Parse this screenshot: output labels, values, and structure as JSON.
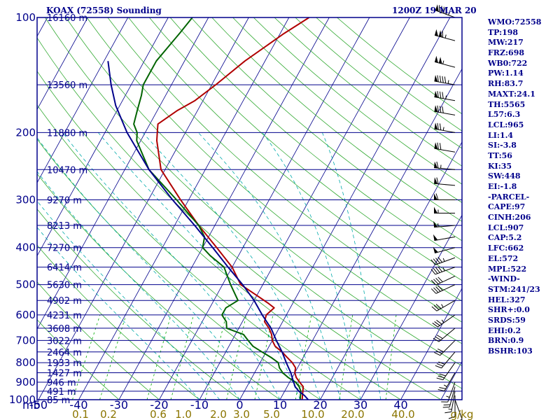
{
  "header": {
    "station": "KOAX (72558) Sounding",
    "time": "1200Z 19 MAR 20"
  },
  "indices": [
    "WMO:72558",
    "TP:198",
    "MW:217",
    "FRZ:698",
    "WB0:722",
    "PW:1.14",
    "RH:83.7",
    "MAXT:24.1",
    "TH:5565",
    "L57:6.3",
    "LCL:965",
    "LI:1.4",
    "SI:-3.8",
    "TT:56",
    "KI:35",
    "SW:448",
    "EI:-1.8",
    "-PARCEL-",
    "CAPE:97",
    "CINH:206",
    "LCL:907",
    "CAP:5.2",
    "LFC:662",
    "EL:572",
    "MPL:522",
    "-WIND-",
    "STM:241/23",
    "HEL:327",
    "SHR+:0.0",
    "SRDS:59",
    "EHI:0.2",
    "BRN:0.9",
    "BSHR:103"
  ],
  "chart_data": {
    "type": "line",
    "chart_kind": "skew-T log-P sounding",
    "title": "KOAX (72558) Sounding",
    "timestamp": "1200Z 19 MAR 20",
    "x_unit_label": "mb",
    "x_ticks": [
      -50,
      -40,
      -30,
      -20,
      -10,
      0,
      10,
      20,
      30,
      40
    ],
    "x_tick_labels": [
      "-50",
      "-40",
      "-30",
      "-20",
      "-10",
      "0",
      "10",
      "20",
      "30",
      "40"
    ],
    "y_ticks": [
      100,
      200,
      300,
      400,
      500,
      600,
      700,
      800,
      900,
      1000
    ],
    "y_tick_labels": [
      "100",
      "200",
      "300",
      "400",
      "500",
      "600",
      "700",
      "800",
      "900",
      "1000"
    ],
    "y_scale": "log",
    "ylim": [
      1000,
      100
    ],
    "height_labels": [
      {
        "p": 100,
        "label": "16160 m"
      },
      {
        "p": 150,
        "label": "13560 m"
      },
      {
        "p": 200,
        "label": "11880 m"
      },
      {
        "p": 250,
        "label": "10470 m"
      },
      {
        "p": 300,
        "label": "9270 m"
      },
      {
        "p": 350,
        "label": "8213 m"
      },
      {
        "p": 400,
        "label": "7270 m"
      },
      {
        "p": 450,
        "label": "6414 m"
      },
      {
        "p": 500,
        "label": "5630 m"
      },
      {
        "p": 550,
        "label": "4902 m"
      },
      {
        "p": 600,
        "label": "4231 m"
      },
      {
        "p": 650,
        "label": "3608 m"
      },
      {
        "p": 700,
        "label": "3022 m"
      },
      {
        "p": 750,
        "label": "2464 m"
      },
      {
        "p": 800,
        "label": "1933 m"
      },
      {
        "p": 850,
        "label": "1427 m"
      },
      {
        "p": 900,
        "label": "946 m"
      },
      {
        "p": 950,
        "label": "491 m"
      },
      {
        "p": 1000,
        "label": "85 m"
      }
    ],
    "mixing_ratio_labels": [
      {
        "w": 0.1,
        "label": "0.1"
      },
      {
        "w": 0.2,
        "label": "0.2"
      },
      {
        "w": 0.6,
        "label": "0.6"
      },
      {
        "w": 1.0,
        "label": "1.0"
      },
      {
        "w": 2.0,
        "label": "2.0"
      },
      {
        "w": 3.0,
        "label": "3.0"
      },
      {
        "w": 5.0,
        "label": "5.0"
      },
      {
        "w": 10.0,
        "label": "10.0"
      },
      {
        "w": 20.0,
        "label": "20.0"
      },
      {
        "w": 40.0,
        "label": "40.0"
      }
    ],
    "mixing_ratio_unit": "g/kg",
    "series": [
      {
        "key": "temperature",
        "color": "#b00000",
        "points": [
          [
            1000,
            15.5
          ],
          [
            975,
            15
          ],
          [
            950,
            14.5
          ],
          [
            925,
            14
          ],
          [
            900,
            12.5
          ],
          [
            875,
            11
          ],
          [
            850,
            10
          ],
          [
            825,
            9.5
          ],
          [
            800,
            8
          ],
          [
            775,
            6
          ],
          [
            750,
            4
          ],
          [
            725,
            1.5
          ],
          [
            700,
            0
          ],
          [
            675,
            -1
          ],
          [
            650,
            -2.5
          ],
          [
            625,
            -4.5
          ],
          [
            600,
            -5
          ],
          [
            575,
            -4
          ],
          [
            560,
            -6
          ],
          [
            540,
            -9
          ],
          [
            500,
            -15.5
          ],
          [
            450,
            -20
          ],
          [
            400,
            -26.5
          ],
          [
            350,
            -34
          ],
          [
            300,
            -42
          ],
          [
            250,
            -51
          ],
          [
            210,
            -56
          ],
          [
            200,
            -57
          ],
          [
            190,
            -58
          ],
          [
            175,
            -55
          ],
          [
            165,
            -52
          ],
          [
            150,
            -49
          ],
          [
            130,
            -45
          ],
          [
            110,
            -39
          ],
          [
            100,
            -35
          ]
        ]
      },
      {
        "key": "dewpoint",
        "color": "#006400",
        "points": [
          [
            1000,
            15
          ],
          [
            975,
            14.5
          ],
          [
            950,
            14
          ],
          [
            925,
            13
          ],
          [
            900,
            11.5
          ],
          [
            875,
            9
          ],
          [
            850,
            7
          ],
          [
            825,
            5.5
          ],
          [
            800,
            4.5
          ],
          [
            775,
            2
          ],
          [
            750,
            -1
          ],
          [
            725,
            -4
          ],
          [
            700,
            -6
          ],
          [
            675,
            -8
          ],
          [
            650,
            -13
          ],
          [
            625,
            -14
          ],
          [
            600,
            -16
          ],
          [
            575,
            -16
          ],
          [
            550,
            -14
          ],
          [
            500,
            -18
          ],
          [
            450,
            -22
          ],
          [
            420,
            -27
          ],
          [
            400,
            -30
          ],
          [
            375,
            -31
          ],
          [
            350,
            -34
          ],
          [
            300,
            -43
          ],
          [
            250,
            -54
          ],
          [
            210,
            -61
          ],
          [
            200,
            -62
          ],
          [
            190,
            -64
          ],
          [
            175,
            -65
          ],
          [
            160,
            -66
          ],
          [
            150,
            -67
          ],
          [
            130,
            -67
          ],
          [
            110,
            -65
          ],
          [
            100,
            -64
          ]
        ]
      },
      {
        "key": "parcel",
        "color": "#00008b",
        "points": [
          [
            1000,
            17
          ],
          [
            975,
            15.5
          ],
          [
            950,
            13.5
          ],
          [
            925,
            12
          ],
          [
            900,
            11
          ],
          [
            850,
            9
          ],
          [
            800,
            6.5
          ],
          [
            750,
            4
          ],
          [
            700,
            1
          ],
          [
            650,
            -2
          ],
          [
            600,
            -6
          ],
          [
            550,
            -10
          ],
          [
            500,
            -15
          ],
          [
            450,
            -21
          ],
          [
            400,
            -27.5
          ],
          [
            350,
            -35
          ],
          [
            300,
            -44
          ],
          [
            250,
            -54
          ],
          [
            200,
            -64.5
          ],
          [
            170,
            -71
          ],
          [
            150,
            -75
          ],
          [
            130,
            -79
          ]
        ]
      }
    ],
    "wind_barbs": [
      {
        "p": 100,
        "dir": 290,
        "spd": 95
      },
      {
        "p": 115,
        "dir": 285,
        "spd": 115
      },
      {
        "p": 135,
        "dir": 285,
        "spd": 105
      },
      {
        "p": 150,
        "dir": 280,
        "spd": 95
      },
      {
        "p": 165,
        "dir": 280,
        "spd": 85
      },
      {
        "p": 180,
        "dir": 280,
        "spd": 80
      },
      {
        "p": 200,
        "dir": 280,
        "spd": 75
      },
      {
        "p": 225,
        "dir": 280,
        "spd": 70
      },
      {
        "p": 250,
        "dir": 275,
        "spd": 65
      },
      {
        "p": 275,
        "dir": 275,
        "spd": 60
      },
      {
        "p": 300,
        "dir": 270,
        "spd": 60
      },
      {
        "p": 325,
        "dir": 270,
        "spd": 55
      },
      {
        "p": 350,
        "dir": 265,
        "spd": 55
      },
      {
        "p": 375,
        "dir": 260,
        "spd": 50
      },
      {
        "p": 400,
        "dir": 255,
        "spd": 50
      },
      {
        "p": 425,
        "dir": 250,
        "spd": 45
      },
      {
        "p": 450,
        "dir": 250,
        "spd": 45
      },
      {
        "p": 475,
        "dir": 245,
        "spd": 40
      },
      {
        "p": 500,
        "dir": 245,
        "spd": 40
      },
      {
        "p": 550,
        "dir": 240,
        "spd": 35
      },
      {
        "p": 600,
        "dir": 235,
        "spd": 35
      },
      {
        "p": 650,
        "dir": 230,
        "spd": 30
      },
      {
        "p": 700,
        "dir": 225,
        "spd": 30
      },
      {
        "p": 750,
        "dir": 220,
        "spd": 30
      },
      {
        "p": 800,
        "dir": 215,
        "spd": 30
      },
      {
        "p": 850,
        "dir": 210,
        "spd": 25
      },
      {
        "p": 900,
        "dir": 200,
        "spd": 25
      },
      {
        "p": 925,
        "dir": 195,
        "spd": 20
      },
      {
        "p": 950,
        "dir": 190,
        "spd": 15
      },
      {
        "p": 975,
        "dir": 180,
        "spd": 10
      },
      {
        "p": 1000,
        "dir": 160,
        "spd": 5
      }
    ],
    "colors": {
      "frame": "#00008b",
      "isotherm": "#00008b",
      "dry_adiabat": "#33aa33",
      "moist_adiabat": "#00aaaa",
      "mixing_ratio": "#00aa00",
      "mixing_ratio_label": "#8b7500"
    }
  }
}
